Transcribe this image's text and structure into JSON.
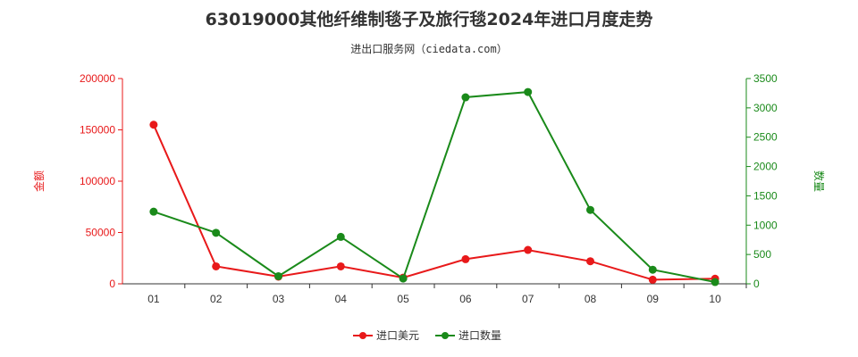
{
  "chart_data": {
    "type": "line",
    "title": "63019000其他纤维制毯子及旅行毯2024年进口月度走势",
    "subtitle": "进出口服务网（ciedata.com）",
    "categories": [
      "01",
      "02",
      "03",
      "04",
      "05",
      "06",
      "07",
      "08",
      "09",
      "10"
    ],
    "left_axis": {
      "label": "金额",
      "range": [
        0,
        200000
      ],
      "ticks": [
        "0",
        "50000",
        "100000",
        "150000",
        "200000"
      ],
      "color": "#e8191a"
    },
    "right_axis": {
      "label": "数量",
      "range": [
        0,
        3500
      ],
      "ticks": [
        "0",
        "500",
        "1000",
        "1500",
        "2000",
        "2500",
        "3000",
        "3500"
      ],
      "color": "#1a8a1a"
    },
    "series": [
      {
        "name": "进口美元",
        "axis": "left",
        "color": "#e8191a",
        "values": [
          155000,
          17000,
          7000,
          17000,
          6000,
          24000,
          33000,
          22000,
          4000,
          5000
        ]
      },
      {
        "name": "进口数量",
        "axis": "right",
        "color": "#1a8a1a",
        "values": [
          1230,
          870,
          130,
          800,
          90,
          3180,
          3270,
          1260,
          240,
          30
        ]
      }
    ],
    "legend_position": "bottom-center",
    "grid": false
  }
}
